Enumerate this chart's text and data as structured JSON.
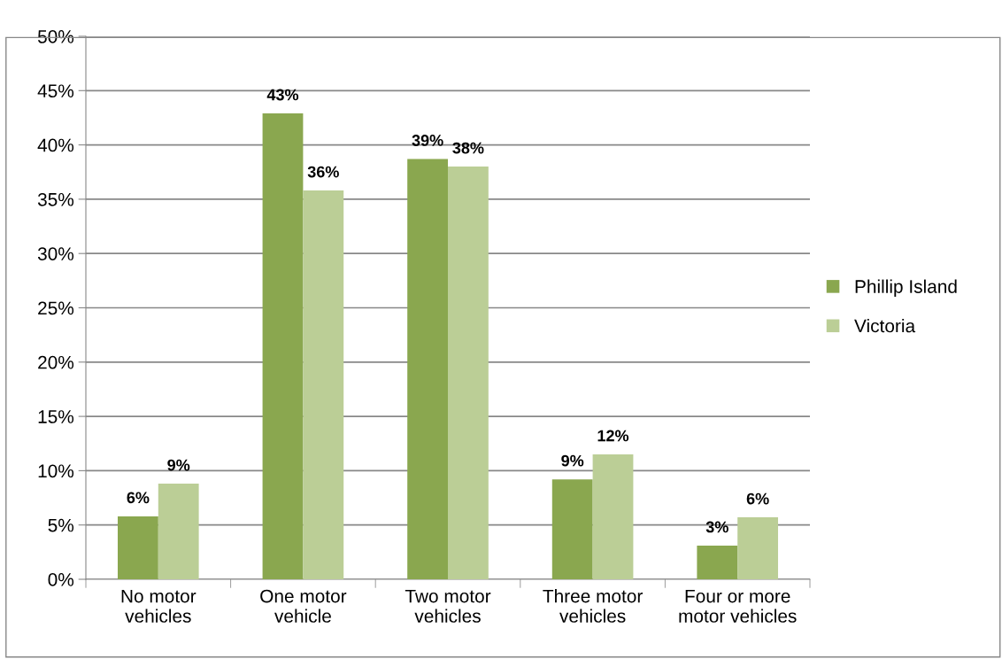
{
  "chart_data": {
    "type": "bar",
    "categories": [
      "No motor\nvehicles",
      "One motor\nvehicle",
      "Two motor\nvehicles",
      "Three motor\nvehicles",
      "Four or more\nmotor vehicles"
    ],
    "series": [
      {
        "name": "Phillip Island",
        "color": "#8aa74f",
        "values": [
          5.8,
          42.9,
          38.7,
          9.2,
          3.1
        ],
        "value_labels": [
          "6%",
          "43%",
          "39%",
          "9%",
          "3%"
        ]
      },
      {
        "name": "Victoria",
        "color": "#bbce96",
        "values": [
          8.8,
          35.8,
          38.0,
          11.5,
          5.7
        ],
        "value_labels": [
          "9%",
          "36%",
          "38%",
          "12%",
          "6%"
        ]
      }
    ],
    "ylim": [
      0,
      50
    ],
    "yticks": [
      {
        "value": 0,
        "label": "0%"
      },
      {
        "value": 5,
        "label": "5%"
      },
      {
        "value": 10,
        "label": "10%"
      },
      {
        "value": 15,
        "label": "15%"
      },
      {
        "value": 20,
        "label": "20%"
      },
      {
        "value": 25,
        "label": "25%"
      },
      {
        "value": 30,
        "label": "30%"
      },
      {
        "value": 35,
        "label": "35%"
      },
      {
        "value": 40,
        "label": "40%"
      },
      {
        "value": 45,
        "label": "45%"
      },
      {
        "value": 50,
        "label": "50%"
      }
    ],
    "grid": "y",
    "legend": "right"
  }
}
